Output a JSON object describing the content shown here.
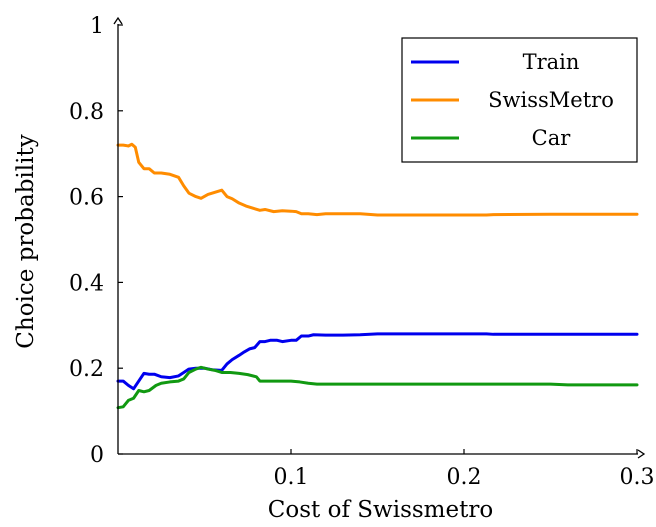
{
  "chart_data": {
    "type": "line",
    "xlabel": "Cost of Swissmetro",
    "ylabel": "Choice probability",
    "xlim": [
      0,
      0.3
    ],
    "ylim": [
      0,
      1
    ],
    "xticks": [
      {
        "value": 0.1,
        "label": "0.1"
      },
      {
        "value": 0.2,
        "label": "0.2"
      },
      {
        "value": 0.3,
        "label": "0.3"
      }
    ],
    "yticks": [
      {
        "value": 0,
        "label": "0"
      },
      {
        "value": 0.2,
        "label": "0.2"
      },
      {
        "value": 0.4,
        "label": "0.4"
      },
      {
        "value": 0.6,
        "label": "0.6"
      },
      {
        "value": 0.8,
        "label": "0.8"
      },
      {
        "value": 1,
        "label": "1"
      }
    ],
    "grid": false,
    "legend_position": "top-right",
    "series": [
      {
        "name": "Train",
        "color": "#0000ee",
        "points": [
          [
            0,
            0.17
          ],
          [
            0.003,
            0.17
          ],
          [
            0.006,
            0.16
          ],
          [
            0.009,
            0.152
          ],
          [
            0.012,
            0.17
          ],
          [
            0.015,
            0.188
          ],
          [
            0.018,
            0.186
          ],
          [
            0.021,
            0.186
          ],
          [
            0.025,
            0.18
          ],
          [
            0.03,
            0.178
          ],
          [
            0.035,
            0.182
          ],
          [
            0.038,
            0.19
          ],
          [
            0.041,
            0.198
          ],
          [
            0.045,
            0.2
          ],
          [
            0.05,
            0.2
          ],
          [
            0.055,
            0.196
          ],
          [
            0.06,
            0.195
          ],
          [
            0.063,
            0.21
          ],
          [
            0.066,
            0.22
          ],
          [
            0.07,
            0.23
          ],
          [
            0.073,
            0.238
          ],
          [
            0.076,
            0.245
          ],
          [
            0.079,
            0.248
          ],
          [
            0.082,
            0.262
          ],
          [
            0.085,
            0.262
          ],
          [
            0.088,
            0.265
          ],
          [
            0.092,
            0.265
          ],
          [
            0.095,
            0.262
          ],
          [
            0.1,
            0.265
          ],
          [
            0.103,
            0.265
          ],
          [
            0.106,
            0.275
          ],
          [
            0.11,
            0.275
          ],
          [
            0.113,
            0.278
          ],
          [
            0.12,
            0.277
          ],
          [
            0.13,
            0.277
          ],
          [
            0.14,
            0.278
          ],
          [
            0.15,
            0.28
          ],
          [
            0.2,
            0.28
          ],
          [
            0.213,
            0.28
          ],
          [
            0.217,
            0.279
          ],
          [
            0.25,
            0.279
          ],
          [
            0.3,
            0.279
          ]
        ]
      },
      {
        "name": "SwissMetro",
        "color": "#ff8c00",
        "points": [
          [
            0,
            0.72
          ],
          [
            0.003,
            0.72
          ],
          [
            0.006,
            0.718
          ],
          [
            0.008,
            0.722
          ],
          [
            0.01,
            0.715
          ],
          [
            0.012,
            0.68
          ],
          [
            0.015,
            0.665
          ],
          [
            0.018,
            0.665
          ],
          [
            0.021,
            0.655
          ],
          [
            0.025,
            0.655
          ],
          [
            0.03,
            0.652
          ],
          [
            0.035,
            0.645
          ],
          [
            0.038,
            0.625
          ],
          [
            0.041,
            0.608
          ],
          [
            0.045,
            0.6
          ],
          [
            0.048,
            0.596
          ],
          [
            0.052,
            0.605
          ],
          [
            0.056,
            0.61
          ],
          [
            0.06,
            0.615
          ],
          [
            0.063,
            0.6
          ],
          [
            0.066,
            0.595
          ],
          [
            0.07,
            0.585
          ],
          [
            0.074,
            0.578
          ],
          [
            0.078,
            0.573
          ],
          [
            0.082,
            0.568
          ],
          [
            0.085,
            0.57
          ],
          [
            0.09,
            0.565
          ],
          [
            0.095,
            0.567
          ],
          [
            0.1,
            0.566
          ],
          [
            0.103,
            0.565
          ],
          [
            0.106,
            0.56
          ],
          [
            0.11,
            0.56
          ],
          [
            0.115,
            0.558
          ],
          [
            0.12,
            0.56
          ],
          [
            0.14,
            0.56
          ],
          [
            0.15,
            0.557
          ],
          [
            0.2,
            0.557
          ],
          [
            0.213,
            0.557
          ],
          [
            0.217,
            0.558
          ],
          [
            0.25,
            0.559
          ],
          [
            0.3,
            0.559
          ]
        ]
      },
      {
        "name": "Car",
        "color": "#119911",
        "points": [
          [
            0,
            0.108
          ],
          [
            0.003,
            0.11
          ],
          [
            0.006,
            0.125
          ],
          [
            0.009,
            0.13
          ],
          [
            0.012,
            0.148
          ],
          [
            0.015,
            0.145
          ],
          [
            0.018,
            0.148
          ],
          [
            0.022,
            0.16
          ],
          [
            0.025,
            0.165
          ],
          [
            0.03,
            0.168
          ],
          [
            0.035,
            0.17
          ],
          [
            0.038,
            0.175
          ],
          [
            0.041,
            0.19
          ],
          [
            0.045,
            0.198
          ],
          [
            0.048,
            0.202
          ],
          [
            0.052,
            0.198
          ],
          [
            0.056,
            0.195
          ],
          [
            0.06,
            0.19
          ],
          [
            0.065,
            0.19
          ],
          [
            0.07,
            0.188
          ],
          [
            0.075,
            0.185
          ],
          [
            0.08,
            0.18
          ],
          [
            0.082,
            0.17
          ],
          [
            0.09,
            0.17
          ],
          [
            0.095,
            0.17
          ],
          [
            0.1,
            0.17
          ],
          [
            0.105,
            0.168
          ],
          [
            0.11,
            0.165
          ],
          [
            0.115,
            0.163
          ],
          [
            0.15,
            0.163
          ],
          [
            0.2,
            0.163
          ],
          [
            0.25,
            0.163
          ],
          [
            0.26,
            0.161
          ],
          [
            0.3,
            0.161
          ]
        ]
      }
    ]
  }
}
